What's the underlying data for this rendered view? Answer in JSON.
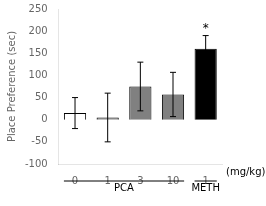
{
  "chart_data": {
    "type": "bar",
    "categories": [
      "0",
      "1",
      "3",
      "10",
      "1"
    ],
    "values": [
      15,
      5,
      75,
      57,
      160
    ],
    "errors": [
      35,
      55,
      55,
      50,
      30
    ],
    "colors": [
      "#ffffff",
      "#909090",
      "#808080",
      "#808080",
      "#000000"
    ],
    "ylabel": "Place Preference (sec)",
    "xlabel": "(mg/kg)",
    "ylim": [
      -100,
      250
    ],
    "yticks": [
      -100,
      -50,
      0,
      50,
      100,
      150,
      200,
      250
    ],
    "grid": false,
    "annotations": [
      {
        "text": "*",
        "index": 4
      }
    ],
    "groups": [
      {
        "label": "PCA",
        "size": 4
      },
      {
        "label": "METH",
        "size": 1
      }
    ]
  }
}
